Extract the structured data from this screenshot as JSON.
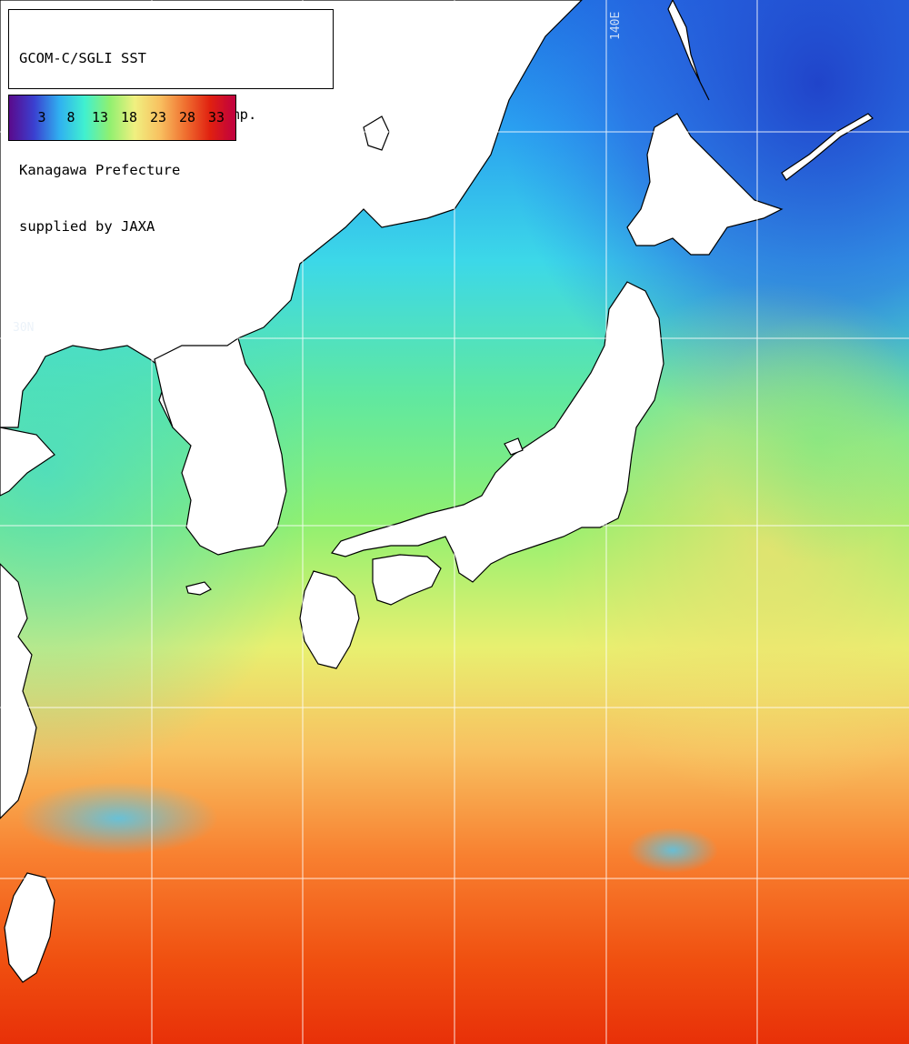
{
  "title": {
    "line1": "GCOM-C/SGLI SST",
    "line2": "~2025/05/09 (UTC) Week Comp.",
    "line3": "Kanagawa Prefecture",
    "line4": "supplied by JAXA"
  },
  "colorbar": {
    "ticks": [
      "3",
      "8",
      "13",
      "18",
      "23",
      "28",
      "33"
    ],
    "colors": [
      "#5a0a8c",
      "#3a40d0",
      "#30b0f0",
      "#40f0d0",
      "#90f070",
      "#f0f080",
      "#f8c060",
      "#f07030",
      "#e02010",
      "#c00040"
    ]
  },
  "grid_labels": {
    "lon": "140E",
    "lat": "30N"
  },
  "colors": {
    "land": "#ffffff",
    "coast": "#000000",
    "grid": "#ffffff"
  }
}
